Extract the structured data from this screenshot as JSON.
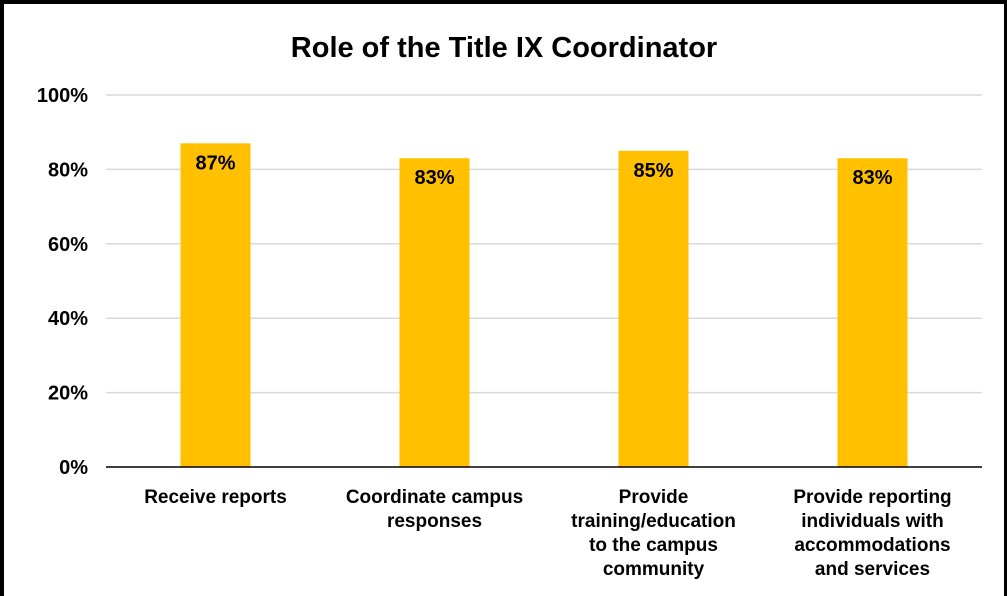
{
  "chart_data": {
    "type": "bar",
    "title": "Role of the Title IX Coordinator",
    "categories": [
      [
        "Receive reports"
      ],
      [
        "Coordinate campus",
        "responses"
      ],
      [
        "Provide",
        "training/education",
        "to the campus",
        "community"
      ],
      [
        "Provide reporting",
        "individuals with",
        "accommodations",
        "and services"
      ]
    ],
    "values": [
      87,
      83,
      85,
      83
    ],
    "value_labels": [
      "87%",
      "83%",
      "85%",
      "83%"
    ],
    "y_ticks": [
      0,
      20,
      40,
      60,
      80,
      100
    ],
    "y_tick_labels": [
      "0%",
      "20%",
      "40%",
      "60%",
      "80%",
      "100%"
    ],
    "ylim": [
      0,
      100
    ],
    "grid": true,
    "legend": "none",
    "colors": {
      "bar": "#FFC000",
      "grid": "#D9D9D9",
      "axis": "#000000"
    }
  }
}
